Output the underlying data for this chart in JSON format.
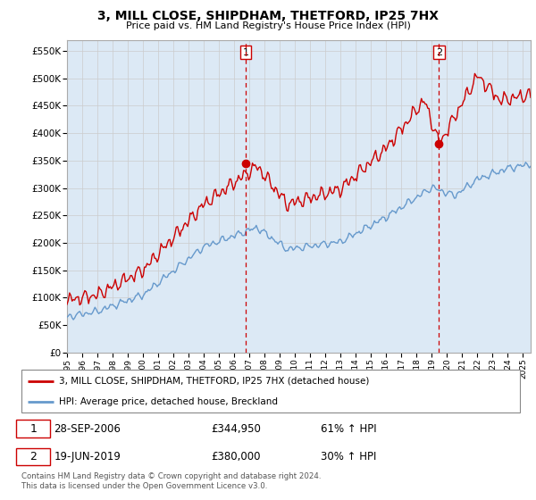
{
  "title": "3, MILL CLOSE, SHIPDHAM, THETFORD, IP25 7HX",
  "subtitle": "Price paid vs. HM Land Registry's House Price Index (HPI)",
  "ylim": [
    0,
    570000
  ],
  "yticks": [
    0,
    50000,
    100000,
    150000,
    200000,
    250000,
    300000,
    350000,
    400000,
    450000,
    500000,
    550000
  ],
  "ytick_labels": [
    "£0",
    "£50K",
    "£100K",
    "£150K",
    "£200K",
    "£250K",
    "£300K",
    "£350K",
    "£400K",
    "£450K",
    "£500K",
    "£550K"
  ],
  "xlim_start": 1995.0,
  "xlim_end": 2025.5,
  "xticks": [
    1995,
    1996,
    1997,
    1998,
    1999,
    2000,
    2001,
    2002,
    2003,
    2004,
    2005,
    2006,
    2007,
    2008,
    2009,
    2010,
    2011,
    2012,
    2013,
    2014,
    2015,
    2016,
    2017,
    2018,
    2019,
    2020,
    2021,
    2022,
    2023,
    2024,
    2025
  ],
  "red_color": "#cc0000",
  "blue_color": "#6699cc",
  "blue_fill_color": "#dce9f5",
  "dashed_line_color": "#cc0000",
  "marker1_x": 2006.75,
  "marker1_y": 344950,
  "marker2_x": 2019.46,
  "marker2_y": 380000,
  "marker1_label": "28-SEP-2006",
  "marker1_price": "£344,950",
  "marker1_hpi": "61% ↑ HPI",
  "marker2_label": "19-JUN-2019",
  "marker2_price": "£380,000",
  "marker2_hpi": "30% ↑ HPI",
  "legend_line1": "3, MILL CLOSE, SHIPDHAM, THETFORD, IP25 7HX (detached house)",
  "legend_line2": "HPI: Average price, detached house, Breckland",
  "footer": "Contains HM Land Registry data © Crown copyright and database right 2024.\nThis data is licensed under the Open Government Licence v3.0.",
  "background_color": "#ffffff",
  "grid_color": "#cccccc"
}
